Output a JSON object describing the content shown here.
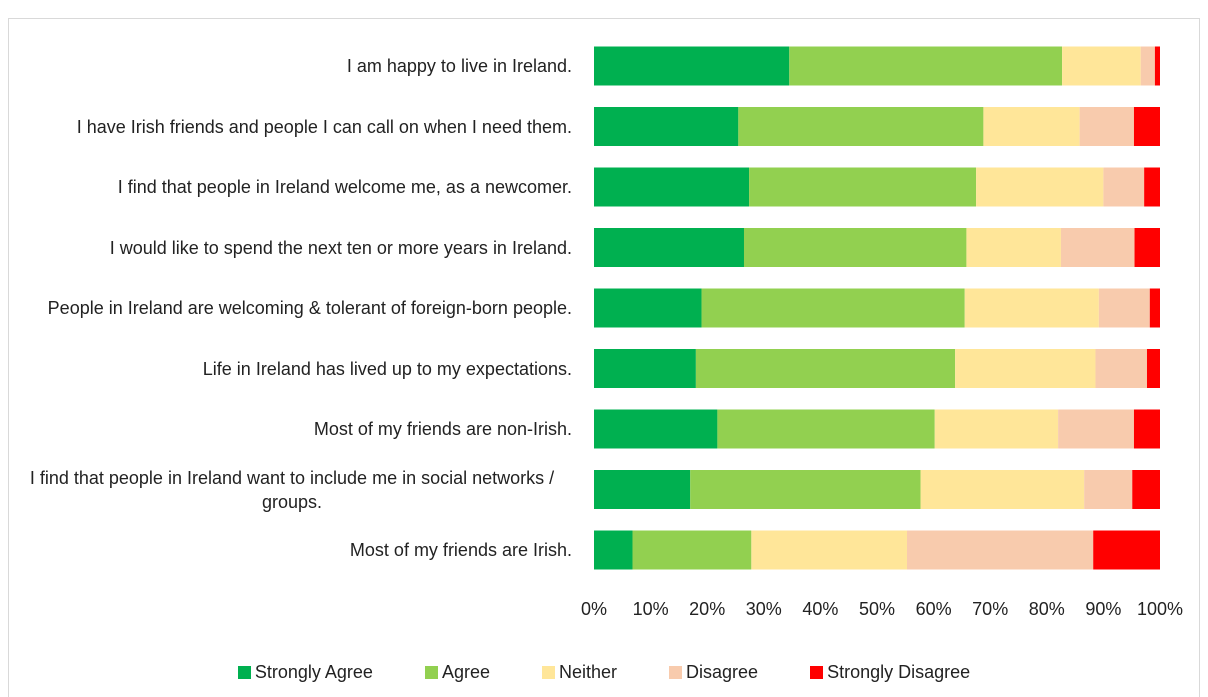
{
  "chart_data": {
    "type": "stacked_barh",
    "categories": [
      "I am happy to live in Ireland.",
      "I have Irish friends and people I can call on when I need them.",
      "I find that people in Ireland welcome me, as a newcomer.",
      "I would like to spend the next ten or more years in Ireland.",
      "People in Ireland are welcoming & tolerant of foreign-born people.",
      "Life in Ireland has lived up to my expectations.",
      "Most of my friends are non-Irish.",
      "I find that people in Ireland want to include me in social networks / groups.",
      "Most of my friends are Irish."
    ],
    "series": [
      {
        "name": "Strongly Agree",
        "color": "#00b050",
        "values": [
          34.5,
          25.5,
          27.4,
          26.5,
          19,
          18,
          21.8,
          17,
          6.8
        ]
      },
      {
        "name": "Agree",
        "color": "#92d050",
        "values": [
          48.2,
          43.3,
          40.1,
          39.3,
          46.5,
          45.8,
          38.4,
          40.7,
          21
        ]
      },
      {
        "name": "Neither",
        "color": "#ffe699",
        "values": [
          13.9,
          17,
          22.5,
          16.7,
          23.7,
          24.8,
          21.8,
          28.9,
          27.5
        ]
      },
      {
        "name": "Disagree",
        "color": "#f8cbad",
        "values": [
          2.5,
          9.6,
          7.2,
          13,
          9,
          9.1,
          13.4,
          8.5,
          32.9
        ]
      },
      {
        "name": "Strongly Disagree",
        "color": "#ff0000",
        "values": [
          0.9,
          4.6,
          2.8,
          4.5,
          1.8,
          2.3,
          4.6,
          4.9,
          11.8
        ]
      }
    ],
    "xlim": [
      0,
      100
    ],
    "xticks": [
      {
        "value": 0,
        "label": "0%"
      },
      {
        "value": 10,
        "label": "10%"
      },
      {
        "value": 20,
        "label": "20%"
      },
      {
        "value": 30,
        "label": "30%"
      },
      {
        "value": 40,
        "label": "40%"
      },
      {
        "value": 50,
        "label": "50%"
      },
      {
        "value": 60,
        "label": "60%"
      },
      {
        "value": 70,
        "label": "70%"
      },
      {
        "value": 80,
        "label": "80%"
      },
      {
        "value": 90,
        "label": "90%"
      },
      {
        "value": 100,
        "label": "100%"
      }
    ],
    "legend": "bottom"
  }
}
